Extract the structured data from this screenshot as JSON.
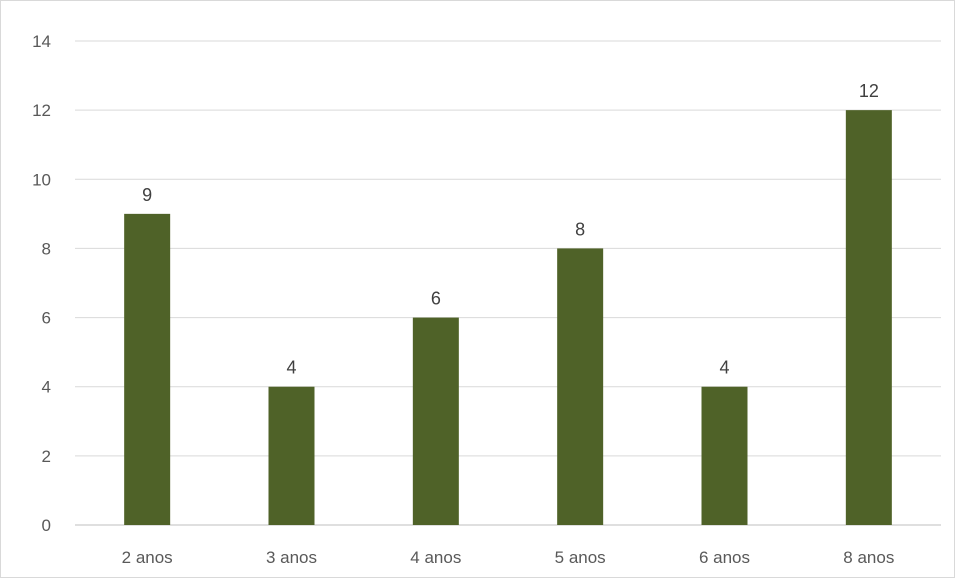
{
  "chart_data": {
    "type": "bar",
    "categories": [
      "2 anos",
      "3 anos",
      "4 anos",
      "5 anos",
      "6 anos",
      "8 anos"
    ],
    "values": [
      9,
      4,
      6,
      8,
      4,
      12
    ],
    "title": "",
    "xlabel": "",
    "ylabel": "",
    "ylim": [
      0,
      14
    ],
    "yticks": [
      0,
      2,
      4,
      6,
      8,
      10,
      12,
      14
    ],
    "grid": true,
    "legend": "none",
    "data_labels": true,
    "bar_color": "#4f6228"
  }
}
